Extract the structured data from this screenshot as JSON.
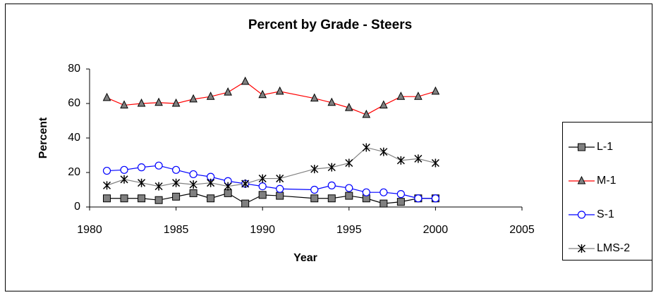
{
  "chart_data": {
    "type": "line",
    "title": "Percent by Grade - Steers",
    "x_label": "Year",
    "y_label": "Percent",
    "x": [
      1981,
      1982,
      1983,
      1984,
      1985,
      1986,
      1987,
      1988,
      1989,
      1990,
      1991,
      1993,
      1994,
      1995,
      1996,
      1997,
      1998,
      1999,
      2000
    ],
    "series": [
      {
        "name": "L-1",
        "color": "#000000",
        "marker": "square",
        "marker_fill": "#808080",
        "values": [
          5,
          5,
          5,
          4,
          6,
          8,
          5,
          8,
          2,
          7,
          6.5,
          5,
          5,
          6.5,
          5,
          2,
          3,
          5,
          5
        ]
      },
      {
        "name": "M-1",
        "color": "#ff0000",
        "marker": "triangle",
        "marker_fill": "#808080",
        "values": [
          63.3,
          59,
          60,
          60.5,
          60,
          62.5,
          64,
          66.5,
          72.7,
          65,
          67,
          63,
          60.5,
          57.5,
          53.5,
          59,
          64,
          64,
          67
        ]
      },
      {
        "name": "S-1",
        "color": "#0000ff",
        "marker": "circle",
        "marker_fill": "#ffffff",
        "values": [
          21,
          21.5,
          23,
          24,
          21.5,
          19,
          17.5,
          15,
          13.5,
          12,
          10.5,
          10,
          12.5,
          11,
          8.5,
          8.5,
          7.5,
          5,
          5
        ]
      },
      {
        "name": "LMS-2",
        "color": "#808080",
        "marker": "star",
        "marker_fill": "#000000",
        "values": [
          12.5,
          16,
          14,
          12,
          14,
          13,
          14,
          12,
          13.5,
          16.5,
          16.5,
          22,
          23,
          25.5,
          34.5,
          32,
          27,
          28,
          25.5
        ]
      }
    ],
    "xlim": [
      1980,
      2005
    ],
    "xticks": [
      1980,
      1985,
      1990,
      1995,
      2000,
      2005
    ],
    "ylim": [
      0,
      80
    ],
    "yticks": [
      0,
      20,
      40,
      60,
      80
    ],
    "grid": false,
    "legend": "right"
  }
}
